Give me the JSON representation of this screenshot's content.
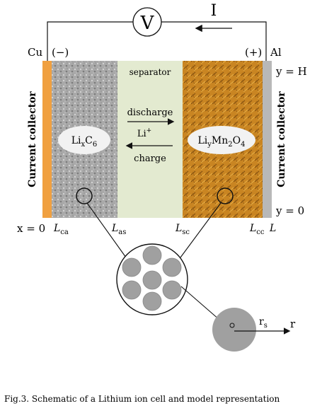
{
  "diagram": {
    "voltmeter_label": "V",
    "current_label": "I",
    "left_metal": "Cu",
    "left_polarity": "(−)",
    "right_polarity": "(+)",
    "right_metal": "Al",
    "y_top": "y = H",
    "y_bottom": "y = 0",
    "x_zero": "x = 0",
    "left_collector": "Current collector",
    "right_collector": "Current collector",
    "separator": "separator",
    "discharge": "discharge",
    "ion": {
      "base": "Li",
      "sup": "+"
    },
    "charge": "charge",
    "anode_material": {
      "a": "Li",
      "a_sub": "x",
      "b": "C",
      "b_sub": "6"
    },
    "cathode_material": {
      "a": "Li",
      "a_sub": "y",
      "b": "Mn",
      "b_sub": "2",
      "c": "O",
      "c_sub": "4"
    },
    "boundaries": [
      {
        "base": "L",
        "sub": "ca"
      },
      {
        "base": "L",
        "sub": "as"
      },
      {
        "base": "L",
        "sub": "sc"
      },
      {
        "base": "L",
        "sub": "cc"
      },
      {
        "base": "L",
        "sub": ""
      }
    ],
    "particle_radius": {
      "base": "r",
      "sub": "s"
    },
    "radial_axis": "r",
    "colors": {
      "copper_collector": "#f0a040",
      "aluminum_collector": "#b8b8b8",
      "anode": "#a9a9a9",
      "separator": "#e3ead0",
      "cathode": "#c98522",
      "particle": "#a0a0a0"
    }
  },
  "caption": "Fig.3. Schematic of a Lithium ion cell and model representation"
}
